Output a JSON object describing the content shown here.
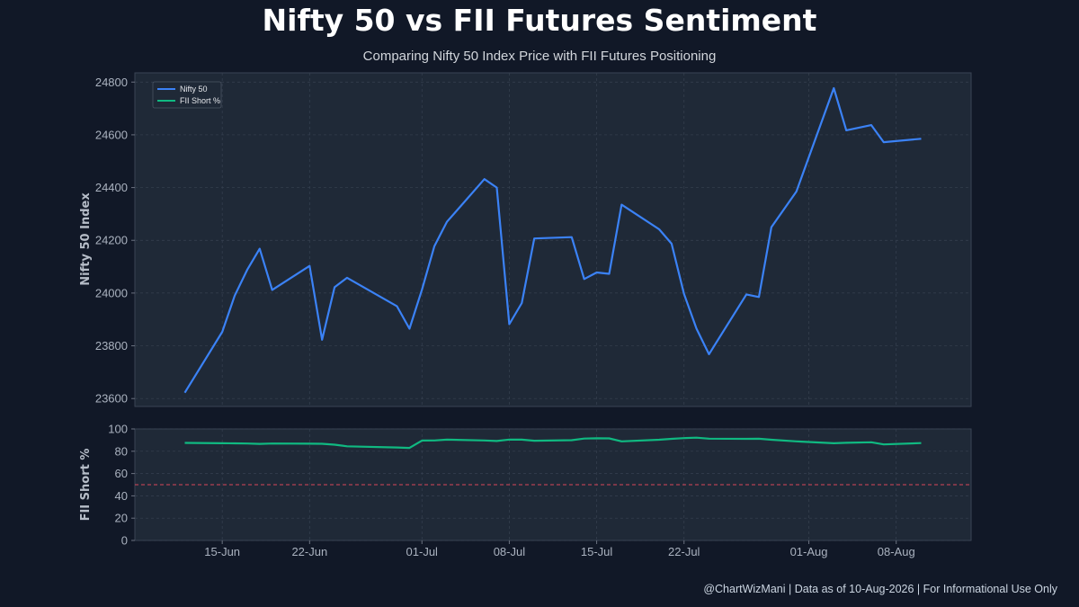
{
  "header": {
    "title": "Nifty 50 vs FII Futures Sentiment",
    "subtitle": "Comparing Nifty 50 Index Price with FII Futures Positioning"
  },
  "footer": {
    "text": "@ChartWizMani | Data as of 10-Aug-2026 | For Informational Use Only"
  },
  "colors": {
    "background": "#111827",
    "panel": "#1f2937",
    "nifty": "#3b82f6",
    "fii": "#10b981",
    "reference": "#d9475a"
  },
  "chart_data": [
    {
      "type": "line",
      "panel": "top",
      "ylabel": "Nifty 50 Index",
      "ylim": [
        23570,
        24835
      ],
      "yticks": [
        23600,
        23800,
        24000,
        24200,
        24400,
        24600,
        24800
      ],
      "grid": true,
      "legend": "top-left",
      "series": [
        {
          "name": "Nifty 50",
          "points": [
            [
              "2026-06-12",
              23622
            ],
            [
              "2026-06-15",
              23853
            ],
            [
              "2026-06-16",
              23990
            ],
            [
              "2026-06-17",
              24088
            ],
            [
              "2026-06-18",
              24168
            ],
            [
              "2026-06-19",
              24012
            ],
            [
              "2026-06-22",
              24103
            ],
            [
              "2026-06-23",
              23823
            ],
            [
              "2026-06-24",
              24022
            ],
            [
              "2026-06-25",
              24058
            ],
            [
              "2026-06-29",
              23950
            ],
            [
              "2026-06-30",
              23865
            ],
            [
              "2026-07-01",
              24013
            ],
            [
              "2026-07-02",
              24178
            ],
            [
              "2026-07-03",
              24270
            ],
            [
              "2026-07-06",
              24432
            ],
            [
              "2026-07-07",
              24400
            ],
            [
              "2026-07-08",
              23882
            ],
            [
              "2026-07-09",
              23962
            ],
            [
              "2026-07-10",
              24207
            ],
            [
              "2026-07-13",
              24212
            ],
            [
              "2026-07-14",
              24053
            ],
            [
              "2026-07-15",
              24078
            ],
            [
              "2026-07-16",
              24073
            ],
            [
              "2026-07-17",
              24335
            ],
            [
              "2026-07-20",
              24242
            ],
            [
              "2026-07-21",
              24187
            ],
            [
              "2026-07-22",
              23997
            ],
            [
              "2026-07-23",
              23865
            ],
            [
              "2026-07-24",
              23768
            ],
            [
              "2026-07-27",
              23995
            ],
            [
              "2026-07-28",
              23985
            ],
            [
              "2026-07-29",
              24250
            ],
            [
              "2026-07-31",
              24385
            ],
            [
              "2026-08-03",
              24777
            ],
            [
              "2026-08-04",
              24617
            ],
            [
              "2026-08-06",
              24637
            ],
            [
              "2026-08-07",
              24572
            ],
            [
              "2026-08-10",
              24585
            ]
          ]
        }
      ]
    },
    {
      "type": "line",
      "panel": "bottom",
      "ylabel": "FII Short %",
      "ylim": [
        0,
        100
      ],
      "yticks": [
        0,
        20,
        40,
        60,
        80,
        100
      ],
      "xticks": [
        "15-Jun",
        "22-Jun",
        "01-Jul",
        "08-Jul",
        "15-Jul",
        "22-Jul",
        "01-Aug",
        "08-Aug"
      ],
      "xtick_dates": [
        "2026-06-15",
        "2026-06-22",
        "2026-07-01",
        "2026-07-08",
        "2026-07-15",
        "2026-07-22",
        "2026-08-01",
        "2026-08-08"
      ],
      "reference_line": 50,
      "grid": true,
      "series": [
        {
          "name": "FII Short %",
          "points": [
            [
              "2026-06-12",
              87.5
            ],
            [
              "2026-06-15",
              87.2
            ],
            [
              "2026-06-16",
              87.1
            ],
            [
              "2026-06-17",
              86.9
            ],
            [
              "2026-06-18",
              86.6
            ],
            [
              "2026-06-19",
              86.9
            ],
            [
              "2026-06-22",
              86.8
            ],
            [
              "2026-06-23",
              86.7
            ],
            [
              "2026-06-24",
              85.9
            ],
            [
              "2026-06-25",
              84.4
            ],
            [
              "2026-06-29",
              83.4
            ],
            [
              "2026-06-30",
              83.0
            ],
            [
              "2026-07-01",
              89.6
            ],
            [
              "2026-07-02",
              89.7
            ],
            [
              "2026-07-03",
              90.4
            ],
            [
              "2026-07-06",
              89.7
            ],
            [
              "2026-07-07",
              89.2
            ],
            [
              "2026-07-08",
              90.5
            ],
            [
              "2026-07-09",
              90.4
            ],
            [
              "2026-07-10",
              89.4
            ],
            [
              "2026-07-13",
              89.9
            ],
            [
              "2026-07-14",
              91.4
            ],
            [
              "2026-07-15",
              91.6
            ],
            [
              "2026-07-16",
              91.5
            ],
            [
              "2026-07-17",
              88.9
            ],
            [
              "2026-07-20",
              90.3
            ],
            [
              "2026-07-21",
              91.1
            ],
            [
              "2026-07-22",
              91.8
            ],
            [
              "2026-07-23",
              92.2
            ],
            [
              "2026-07-24",
              91.3
            ],
            [
              "2026-07-27",
              91.1
            ],
            [
              "2026-07-28",
              91.2
            ],
            [
              "2026-07-29",
              90.3
            ],
            [
              "2026-07-31",
              88.9
            ],
            [
              "2026-08-03",
              87.2
            ],
            [
              "2026-08-04",
              87.6
            ],
            [
              "2026-08-06",
              88.1
            ],
            [
              "2026-08-07",
              86.1
            ],
            [
              "2026-08-10",
              87.3
            ]
          ]
        }
      ]
    }
  ]
}
